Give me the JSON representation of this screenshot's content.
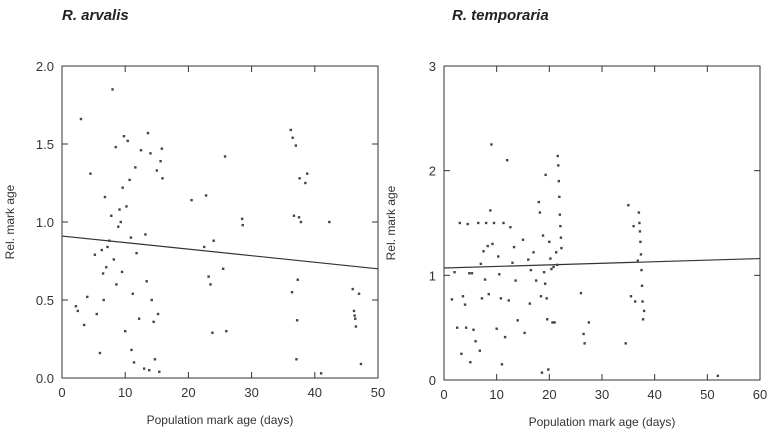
{
  "chart_data": [
    {
      "type": "scatter",
      "title": "R. arvalis",
      "xlabel": "Population mark age (days)",
      "ylabel": "Rel. mark age",
      "xlim": [
        0,
        50
      ],
      "ylim": [
        0,
        2.0
      ],
      "xticks": [
        0,
        10,
        20,
        30,
        40,
        50
      ],
      "xtick_labels": [
        "0",
        "10",
        "20",
        "30",
        "40",
        "50"
      ],
      "yticks": [
        0,
        0.5,
        1.0,
        1.5,
        2.0
      ],
      "ytick_labels": [
        "0.0",
        "0.5",
        "1.0",
        "1.5",
        "2.0"
      ],
      "grid": false,
      "regression_line": {
        "x": [
          0,
          50
        ],
        "y": [
          0.91,
          0.7
        ]
      },
      "points": [
        [
          2.2,
          0.46
        ],
        [
          2.5,
          0.43
        ],
        [
          3,
          1.66
        ],
        [
          3.5,
          0.34
        ],
        [
          4,
          0.52
        ],
        [
          4.5,
          1.31
        ],
        [
          5.2,
          0.79
        ],
        [
          5.5,
          0.41
        ],
        [
          6,
          0.16
        ],
        [
          6.3,
          0.82
        ],
        [
          6.5,
          0.67
        ],
        [
          6.6,
          0.5
        ],
        [
          6.8,
          1.16
        ],
        [
          7,
          0.71
        ],
        [
          7.2,
          0.84
        ],
        [
          7.5,
          0.88
        ],
        [
          7.8,
          1.04
        ],
        [
          8,
          1.85
        ],
        [
          8.2,
          0.76
        ],
        [
          8.5,
          1.48
        ],
        [
          8.6,
          0.6
        ],
        [
          8.9,
          0.97
        ],
        [
          9.1,
          1.08
        ],
        [
          9.3,
          1.0
        ],
        [
          9.5,
          0.68
        ],
        [
          9.6,
          1.22
        ],
        [
          9.8,
          1.55
        ],
        [
          10,
          0.3
        ],
        [
          10.2,
          1.1
        ],
        [
          10.4,
          1.52
        ],
        [
          10.7,
          1.27
        ],
        [
          10.9,
          0.9
        ],
        [
          11,
          0.18
        ],
        [
          11.2,
          0.54
        ],
        [
          11.4,
          0.1
        ],
        [
          11.6,
          1.35
        ],
        [
          11.8,
          0.8
        ],
        [
          12.2,
          0.38
        ],
        [
          12.5,
          1.46
        ],
        [
          13,
          0.06
        ],
        [
          13.2,
          0.92
        ],
        [
          13.4,
          0.62
        ],
        [
          13.6,
          1.57
        ],
        [
          13.8,
          0.05
        ],
        [
          14,
          1.44
        ],
        [
          14.2,
          0.5
        ],
        [
          14.5,
          0.36
        ],
        [
          14.7,
          0.12
        ],
        [
          15,
          1.33
        ],
        [
          15.2,
          0.41
        ],
        [
          15.4,
          0.04
        ],
        [
          15.6,
          1.39
        ],
        [
          15.8,
          1.47
        ],
        [
          15.9,
          1.28
        ],
        [
          20.5,
          1.14
        ],
        [
          22.5,
          0.84
        ],
        [
          22.8,
          1.17
        ],
        [
          23.2,
          0.65
        ],
        [
          23.5,
          0.6
        ],
        [
          23.8,
          0.29
        ],
        [
          24,
          0.88
        ],
        [
          25.5,
          0.7
        ],
        [
          25.8,
          1.42
        ],
        [
          26,
          0.3
        ],
        [
          28.5,
          1.02
        ],
        [
          28.6,
          0.98
        ],
        [
          36.2,
          1.59
        ],
        [
          36.5,
          1.54
        ],
        [
          36.7,
          1.04
        ],
        [
          37,
          1.49
        ],
        [
          37.1,
          0.12
        ],
        [
          37.2,
          0.37
        ],
        [
          37.3,
          0.63
        ],
        [
          37.5,
          1.03
        ],
        [
          37.6,
          1.28
        ],
        [
          37.8,
          1.0
        ],
        [
          38.5,
          1.25
        ],
        [
          38.8,
          1.31
        ],
        [
          41,
          0.03
        ],
        [
          42.3,
          1.0
        ],
        [
          46,
          0.57
        ],
        [
          46.2,
          0.43
        ],
        [
          46.3,
          0.4
        ],
        [
          46.4,
          0.38
        ],
        [
          46.5,
          0.33
        ],
        [
          47,
          0.54
        ],
        [
          47.3,
          0.09
        ],
        [
          36.4,
          0.55
        ]
      ]
    },
    {
      "type": "scatter",
      "title": "R. temporaria",
      "xlabel": "Population mark age (days)",
      "ylabel": "Rel. mark age",
      "xlim": [
        0,
        60
      ],
      "ylim": [
        0,
        3
      ],
      "xticks": [
        0,
        10,
        20,
        30,
        40,
        50,
        60
      ],
      "xtick_labels": [
        "0",
        "10",
        "20",
        "30",
        "40",
        "50",
        "60"
      ],
      "yticks": [
        0,
        1,
        2,
        3
      ],
      "ytick_labels": [
        "0",
        "1",
        "2",
        "3"
      ],
      "grid": false,
      "regression_line": {
        "x": [
          0,
          60
        ],
        "y": [
          1.07,
          1.16
        ]
      },
      "points": [
        [
          1.5,
          0.77
        ],
        [
          2,
          1.03
        ],
        [
          2.5,
          0.5
        ],
        [
          3,
          1.5
        ],
        [
          3.3,
          0.25
        ],
        [
          3.6,
          0.8
        ],
        [
          4,
          0.72
        ],
        [
          4.2,
          0.5
        ],
        [
          4.5,
          1.49
        ],
        [
          4.8,
          1.02
        ],
        [
          5,
          0.17
        ],
        [
          5.3,
          1.02
        ],
        [
          5.6,
          0.48
        ],
        [
          6,
          0.37
        ],
        [
          6.5,
          1.5
        ],
        [
          6.8,
          0.28
        ],
        [
          7,
          1.11
        ],
        [
          7.2,
          0.78
        ],
        [
          7.5,
          1.23
        ],
        [
          7.8,
          0.96
        ],
        [
          8,
          1.5
        ],
        [
          8.3,
          1.28
        ],
        [
          8.5,
          0.82
        ],
        [
          8.8,
          1.62
        ],
        [
          9,
          2.25
        ],
        [
          9.2,
          1.3
        ],
        [
          9.5,
          1.5
        ],
        [
          10,
          0.49
        ],
        [
          10.3,
          1.18
        ],
        [
          10.5,
          1.01
        ],
        [
          10.8,
          0.78
        ],
        [
          11,
          0.15
        ],
        [
          11.3,
          1.5
        ],
        [
          11.6,
          0.41
        ],
        [
          12,
          2.1
        ],
        [
          12.3,
          0.76
        ],
        [
          12.6,
          1.46
        ],
        [
          13,
          1.12
        ],
        [
          13.3,
          1.27
        ],
        [
          13.6,
          0.95
        ],
        [
          14,
          0.57
        ],
        [
          15,
          1.34
        ],
        [
          15.3,
          0.45
        ],
        [
          16,
          1.15
        ],
        [
          16.3,
          0.73
        ],
        [
          16.5,
          1.05
        ],
        [
          17,
          1.22
        ],
        [
          17.5,
          0.95
        ],
        [
          18,
          1.7
        ],
        [
          18.2,
          1.6
        ],
        [
          18.4,
          0.8
        ],
        [
          18.6,
          0.07
        ],
        [
          18.8,
          1.38
        ],
        [
          19,
          1.03
        ],
        [
          19.2,
          0.92
        ],
        [
          19.3,
          1.96
        ],
        [
          19.5,
          0.78
        ],
        [
          19.6,
          0.58
        ],
        [
          19.8,
          0.1
        ],
        [
          20,
          1.32
        ],
        [
          20.2,
          1.16
        ],
        [
          20.4,
          1.06
        ],
        [
          20.6,
          0.55
        ],
        [
          20.8,
          1.08
        ],
        [
          21,
          0.55
        ],
        [
          21.3,
          1.22
        ],
        [
          21.5,
          1.1
        ],
        [
          21.6,
          2.14
        ],
        [
          21.7,
          2.05
        ],
        [
          21.8,
          1.9
        ],
        [
          21.9,
          1.75
        ],
        [
          22,
          1.58
        ],
        [
          22.1,
          1.47
        ],
        [
          22.2,
          1.36
        ],
        [
          22.3,
          1.26
        ],
        [
          26,
          0.83
        ],
        [
          26.5,
          0.44
        ],
        [
          26.7,
          0.35
        ],
        [
          27.5,
          0.55
        ],
        [
          34.5,
          0.35
        ],
        [
          35,
          1.67
        ],
        [
          35.5,
          0.8
        ],
        [
          36,
          1.47
        ],
        [
          36.3,
          0.75
        ],
        [
          36.8,
          1.14
        ],
        [
          37,
          1.6
        ],
        [
          37.1,
          1.5
        ],
        [
          37.2,
          1.42
        ],
        [
          37.3,
          1.32
        ],
        [
          37.4,
          1.2
        ],
        [
          37.5,
          1.05
        ],
        [
          37.6,
          0.9
        ],
        [
          37.7,
          0.75
        ],
        [
          37.8,
          0.58
        ],
        [
          38,
          0.66
        ],
        [
          52,
          0.04
        ]
      ]
    }
  ]
}
